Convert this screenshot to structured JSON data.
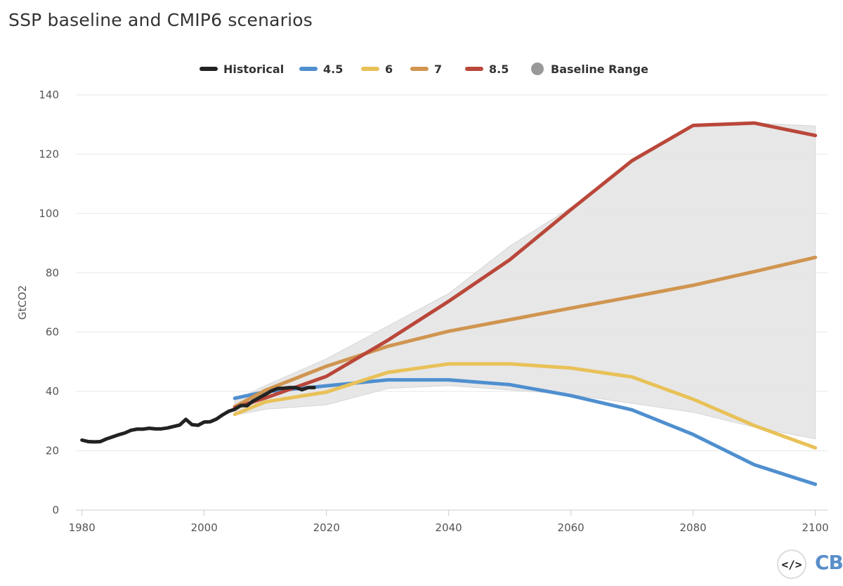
{
  "chart_data": {
    "type": "line",
    "title": "SSP baseline and CMIP6 scenarios",
    "ylabel": "GtCO2",
    "xlabel": "",
    "xlim": [
      1979,
      2102
    ],
    "ylim": [
      0,
      140
    ],
    "x_ticks": [
      1980,
      2000,
      2020,
      2040,
      2060,
      2080,
      2100
    ],
    "y_ticks": [
      0,
      20,
      40,
      60,
      80,
      100,
      120,
      140
    ],
    "grid": "horizontal",
    "legend_position": "top-center",
    "legend": [
      {
        "label": "Historical",
        "color": "#222222",
        "kind": "line"
      },
      {
        "label": "4.5",
        "color": "#4f8fcf",
        "kind": "line"
      },
      {
        "label": "6",
        "color": "#e8c158",
        "kind": "line"
      },
      {
        "label": "7",
        "color": "#d09550",
        "kind": "line"
      },
      {
        "label": "8.5",
        "color": "#b9473a",
        "kind": "line"
      },
      {
        "label": "Baseline Range",
        "color": "#999999",
        "kind": "dot"
      }
    ],
    "range": {
      "name": "Baseline Range",
      "color": "#e6e6e6",
      "x": [
        2005,
        2010,
        2020,
        2030,
        2040,
        2050,
        2060,
        2070,
        2080,
        2090,
        2100
      ],
      "low": [
        32,
        34,
        35.5,
        41,
        42,
        40.5,
        39,
        36,
        33,
        28,
        24
      ],
      "high": [
        37,
        42,
        51,
        62,
        73,
        89,
        102,
        117,
        130,
        130.5,
        129.5
      ]
    },
    "series": [
      {
        "name": "Historical",
        "color": "#222222",
        "x": [
          1980,
          1981,
          1982,
          1983,
          1984,
          1985,
          1986,
          1987,
          1988,
          1989,
          1990,
          1991,
          1992,
          1993,
          1994,
          1995,
          1996,
          1997,
          1998,
          1999,
          2000,
          2001,
          2002,
          2003,
          2004,
          2005,
          2006,
          2007,
          2008,
          2009,
          2010,
          2011,
          2012,
          2013,
          2014,
          2015,
          2016,
          2017,
          2018
        ],
        "y": [
          23.6,
          23.1,
          23.0,
          23.1,
          24.0,
          24.7,
          25.4,
          26.0,
          26.9,
          27.3,
          27.3,
          27.6,
          27.4,
          27.4,
          27.7,
          28.2,
          28.7,
          30.6,
          28.8,
          28.6,
          29.7,
          29.8,
          30.7,
          32.1,
          33.3,
          34.0,
          35.3,
          35.2,
          36.8,
          37.9,
          39.0,
          40.2,
          41.0,
          41.1,
          41.3,
          41.3,
          40.6,
          41.3,
          41.3
        ]
      },
      {
        "name": "4.5",
        "color": "#4f8fcf",
        "x": [
          2005,
          2010,
          2020,
          2030,
          2040,
          2050,
          2060,
          2070,
          2080,
          2090,
          2100
        ],
        "y": [
          37.7,
          39.9,
          41.9,
          43.9,
          43.9,
          42.3,
          38.6,
          33.8,
          25.5,
          15.3,
          8.7
        ]
      },
      {
        "name": "6",
        "color": "#e8c158",
        "x": [
          2005,
          2010,
          2020,
          2030,
          2040,
          2050,
          2060,
          2070,
          2080,
          2090,
          2100
        ],
        "y": [
          32.3,
          36.5,
          39.8,
          46.4,
          49.3,
          49.3,
          47.9,
          44.9,
          37.4,
          28.5,
          21.0
        ]
      },
      {
        "name": "7",
        "color": "#d09550",
        "x": [
          2005,
          2010,
          2020,
          2030,
          2040,
          2050,
          2060,
          2070,
          2080,
          2090,
          2100
        ],
        "y": [
          34.9,
          40.4,
          48.5,
          55.2,
          60.3,
          64.2,
          68.1,
          71.9,
          75.8,
          80.4,
          85.2
        ]
      },
      {
        "name": "8.5",
        "color": "#b9473a",
        "x": [
          2005,
          2010,
          2020,
          2030,
          2040,
          2050,
          2060,
          2070,
          2080,
          2090,
          2100
        ],
        "y": [
          34.5,
          37.8,
          45.1,
          57.2,
          70.4,
          84.4,
          101.3,
          117.8,
          129.7,
          130.5,
          126.3
        ]
      }
    ]
  },
  "logos": {
    "embed_icon": "code-embed-icon",
    "embed_glyph": "</>",
    "brand": "CB"
  }
}
